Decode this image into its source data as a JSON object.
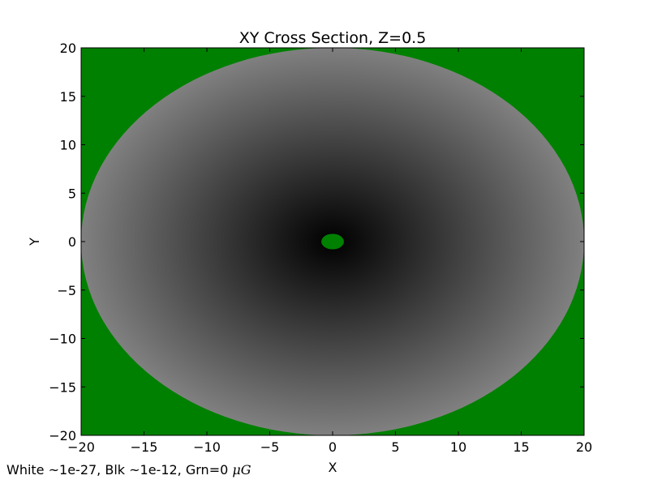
{
  "chart_data": {
    "type": "heatmap",
    "title": "XY Cross Section, Z=0.5",
    "xlabel": "X",
    "ylabel": "Y",
    "xlim": [
      -20,
      20
    ],
    "ylim": [
      -20,
      20
    ],
    "xticks": [
      -20,
      -15,
      -10,
      -5,
      0,
      5,
      10,
      15,
      20
    ],
    "yticks": [
      -20,
      -15,
      -10,
      -5,
      0,
      5,
      10,
      15,
      20
    ],
    "xtick_labels": [
      "−20",
      "−15",
      "−10",
      "−5",
      "0",
      "5",
      "10",
      "15",
      "20"
    ],
    "ytick_labels": [
      "−20",
      "−15",
      "−10",
      "−5",
      "0",
      "5",
      "10",
      "15",
      "20"
    ],
    "grid": false,
    "zero_field_color": "#008000",
    "field_region": {
      "shape": "ellipse",
      "center": [
        0,
        0
      ],
      "semi_axis_x": 20,
      "semi_axis_y": 20,
      "inner_zero_region_radius": 0.8,
      "center_shade": "#000000",
      "edge_shade": "#808080"
    },
    "colorscale_note": {
      "prefix": "White ~1e-27, Blk ~1e-12, Grn=0 ",
      "unit": "μG"
    }
  }
}
